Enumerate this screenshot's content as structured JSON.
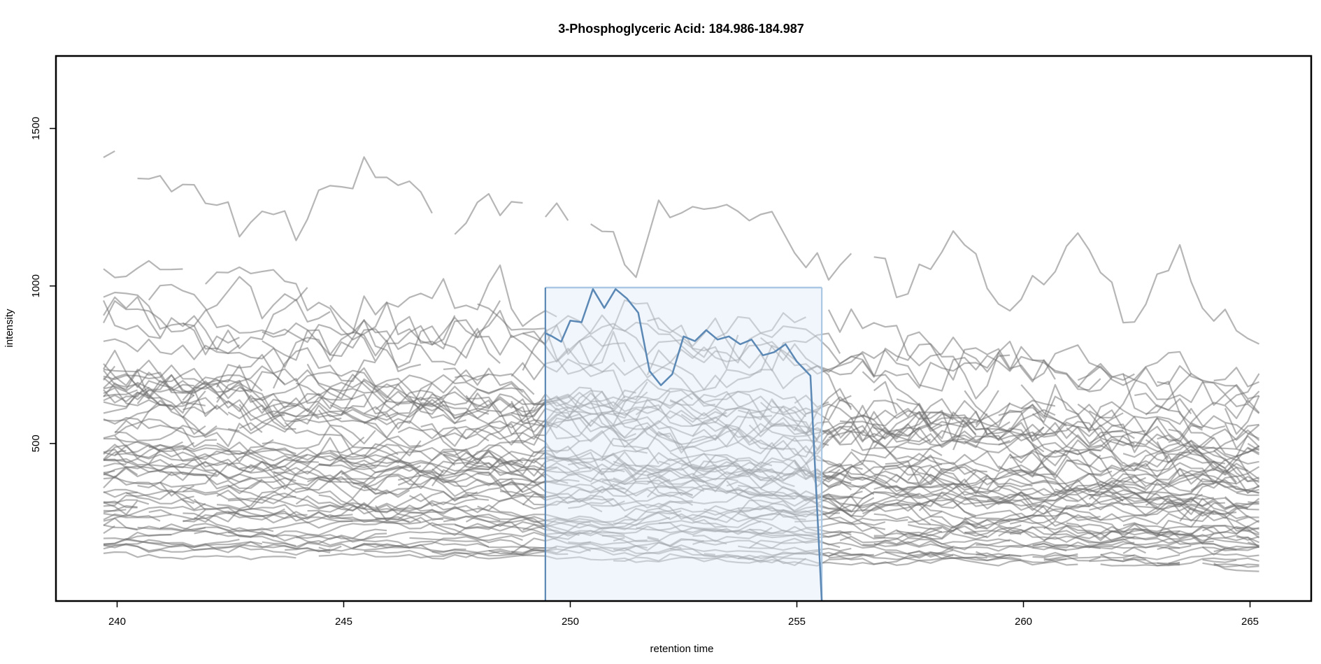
{
  "chart_data": {
    "type": "line",
    "title": "3-Phosphoglyceric Acid: 184.986-184.987",
    "xlabel": "retention time",
    "ylabel": "intensity",
    "xlim": [
      238.65,
      266.35
    ],
    "ylim": [
      0,
      1730
    ],
    "x_ticks": [
      240,
      245,
      250,
      255,
      260,
      265
    ],
    "y_ticks": [
      500,
      1000,
      1500
    ],
    "grid": false,
    "legend": "none",
    "colors": {
      "trace": "#6e6e6e",
      "peak_line": "#5b88b5",
      "peak_fill": "#ddeaf6",
      "peak_border": "#aac8e3"
    },
    "trace_series": {
      "description_note": "",
      "x_start": 239.7,
      "x_end": 265.3,
      "scan_interval": 0.25
    },
    "peak_window": {
      "x_min": 249.45,
      "x_max": 255.55,
      "y_max": 995
    },
    "peak_trace": {
      "x": [
        249.45,
        249.6,
        249.8,
        250.0,
        250.25,
        250.5,
        250.75,
        251.0,
        251.25,
        251.5,
        251.75,
        252.0,
        252.25,
        252.5,
        252.75,
        253.0,
        253.25,
        253.5,
        253.75,
        254.0,
        254.25,
        254.5,
        254.75,
        255.0,
        255.3,
        255.55
      ],
      "y": [
        850,
        840,
        823,
        890,
        885,
        990,
        930,
        990,
        960,
        915,
        730,
        685,
        720,
        840,
        825,
        860,
        830,
        840,
        815,
        830,
        780,
        790,
        815,
        760,
        715,
        0
      ]
    },
    "trace_count": 70
  }
}
